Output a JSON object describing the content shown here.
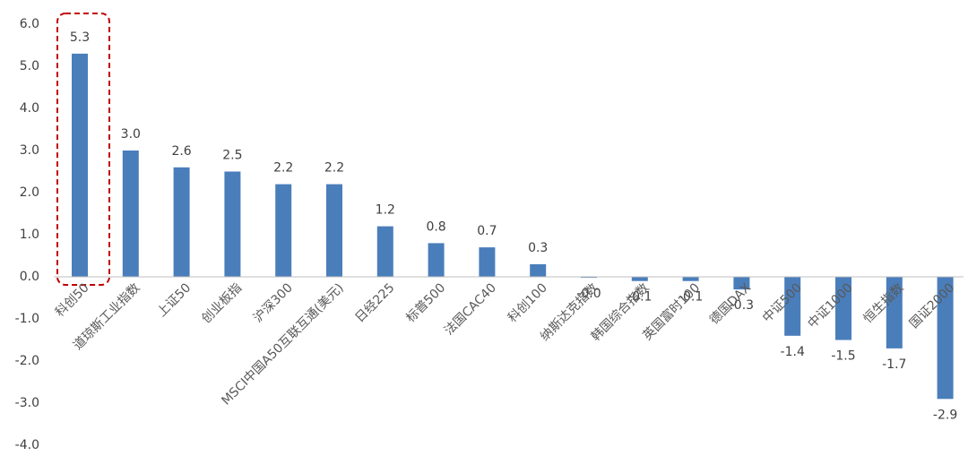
{
  "chart_data": {
    "type": "bar",
    "categories": [
      "科创50",
      "道琼斯工业指数",
      "上证50",
      "创业板指",
      "沪深300",
      "MSCI中国A50互联互通(美元)",
      "日经225",
      "标普500",
      "法国CAC40",
      "科创100",
      "纳斯达克指数",
      "韩国综合指数",
      "英国富时100",
      "德国DAX",
      "中证500",
      "中证1000",
      "恒生指数",
      "国证2000"
    ],
    "values": [
      5.3,
      3.0,
      2.6,
      2.5,
      2.2,
      2.2,
      1.2,
      0.8,
      0.7,
      0.3,
      -0.02,
      -0.1,
      -0.1,
      -0.3,
      -1.4,
      -1.5,
      -1.7,
      -2.9
    ],
    "value_labels": [
      "5.3",
      "3.0",
      "2.6",
      "2.5",
      "2.2",
      "2.2",
      "1.2",
      "0.8",
      "0.7",
      "0.3",
      "-0.0",
      "-0.1",
      "-0.1",
      "-0.3",
      "-1.4",
      "-1.5",
      "-1.7",
      "-2.9"
    ],
    "color": "#4a7ebb",
    "ylim": [
      -4,
      6
    ],
    "yticks": [
      {
        "value": -4,
        "label": "-4.0"
      },
      {
        "value": -3,
        "label": "-3.0"
      },
      {
        "value": -2,
        "label": "-2.0"
      },
      {
        "value": -1,
        "label": "-1.0"
      },
      {
        "value": 0,
        "label": "0.0"
      },
      {
        "value": 1,
        "label": "1.0"
      },
      {
        "value": 2,
        "label": "2.0"
      },
      {
        "value": 3,
        "label": "3.0"
      },
      {
        "value": 4,
        "label": "4.0"
      },
      {
        "value": 5,
        "label": "5.0"
      },
      {
        "value": 6,
        "label": "6.0"
      }
    ],
    "grid": false
  }
}
